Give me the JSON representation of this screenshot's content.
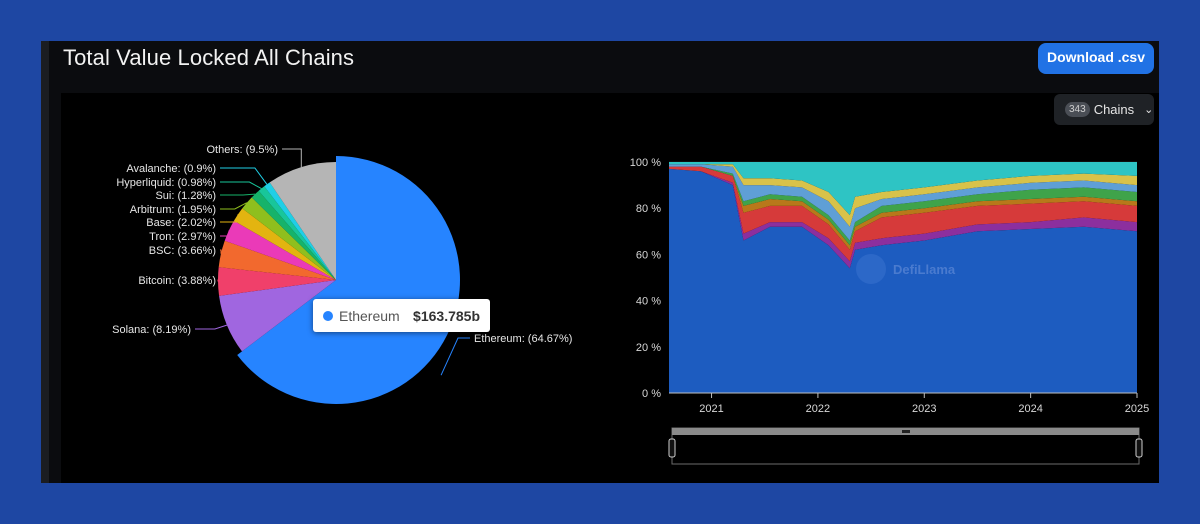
{
  "header": {
    "title": "Total Value Locked All Chains",
    "download_label": "Download .csv"
  },
  "chains_filter": {
    "count": "343",
    "label": "Chains"
  },
  "tooltip": {
    "name": "Ethereum",
    "value": "$163.785b",
    "color": "#2684ff"
  },
  "watermark": "DefiLlama",
  "chart_data": [
    {
      "type": "pie",
      "slices": [
        {
          "label": "Ethereum",
          "value": 64.67,
          "text": "Ethereum: (64.67%)",
          "color": "#2684ff"
        },
        {
          "label": "Solana",
          "value": 8.19,
          "text": "Solana: (8.19%)",
          "color": "#a066e0"
        },
        {
          "label": "Bitcoin",
          "value": 3.88,
          "text": "Bitcoin: (3.88%)",
          "color": "#f0406a"
        },
        {
          "label": "BSC",
          "value": 3.66,
          "text": "BSC: (3.66%)",
          "color": "#f2692e"
        },
        {
          "label": "Tron",
          "value": 2.97,
          "text": "Tron: (2.97%)",
          "color": "#ea3ab8"
        },
        {
          "label": "Base",
          "value": 2.02,
          "text": "Base: (2.02%)",
          "color": "#e3b410"
        },
        {
          "label": "Arbitrum",
          "value": 1.95,
          "text": "Arbitrum: (1.95%)",
          "color": "#8fbf1e"
        },
        {
          "label": "Sui",
          "value": 1.28,
          "text": "Sui: (1.28%)",
          "color": "#16b36a"
        },
        {
          "label": "Hyperliquid",
          "value": 0.98,
          "text": "Hyperliquid: (0.98%)",
          "color": "#18c69a"
        },
        {
          "label": "Avalanche",
          "value": 0.9,
          "text": "Avalanche: (0.9%)",
          "color": "#1fcfe6"
        },
        {
          "label": "Others",
          "value": 9.5,
          "text": "Others: (9.5%)",
          "color": "#b5b5b5"
        }
      ]
    },
    {
      "type": "area",
      "stacked": "percent",
      "x": [
        2020.6,
        2020.9,
        2021.2,
        2021.3,
        2021.55,
        2021.85,
        2022.1,
        2022.3,
        2022.35,
        2022.6,
        2023.0,
        2023.5,
        2024.0,
        2024.5,
        2025.0
      ],
      "x_ticks": [
        "2021",
        "2022",
        "2023",
        "2024",
        "2025"
      ],
      "y_ticks": [
        "0 %",
        "20 %",
        "40 %",
        "60 %",
        "80 %",
        "100 %"
      ],
      "ylim": [
        0,
        100
      ],
      "series": [
        {
          "color": "#1d5cc0",
          "values": [
            97,
            96,
            90,
            66,
            72,
            72,
            64,
            54,
            62,
            64,
            66,
            70,
            71,
            72,
            70
          ]
        },
        {
          "color": "#8c2f9e",
          "values": [
            0,
            0,
            1,
            3,
            2,
            2,
            3,
            3,
            3,
            3,
            3,
            3,
            3,
            4,
            4
          ]
        },
        {
          "color": "#d63a3a",
          "values": [
            1,
            2,
            3,
            9,
            7,
            7,
            6,
            5,
            5,
            9,
            9,
            8,
            8,
            7,
            7
          ]
        },
        {
          "color": "#b8781a",
          "values": [
            0,
            0,
            0,
            3,
            3,
            2,
            2,
            2,
            2,
            2,
            2,
            2,
            2,
            2,
            2
          ]
        },
        {
          "color": "#3fa34a",
          "values": [
            0,
            0,
            1,
            2,
            2,
            2,
            2,
            2,
            2,
            3,
            3,
            3,
            4,
            4,
            4
          ]
        },
        {
          "color": "#5f9fd6",
          "values": [
            1,
            1,
            3,
            7,
            4,
            4,
            6,
            6,
            6,
            3,
            3,
            3,
            3,
            3,
            3
          ]
        },
        {
          "color": "#d8c24a",
          "values": [
            0,
            0,
            1,
            3,
            3,
            3,
            4,
            5,
            5,
            3,
            3,
            3,
            3,
            3,
            4
          ]
        },
        {
          "color": "#2ec4c4",
          "values": [
            1,
            1,
            1,
            7,
            7,
            8,
            13,
            23,
            15,
            13,
            11,
            8,
            6,
            5,
            6
          ]
        }
      ]
    }
  ]
}
